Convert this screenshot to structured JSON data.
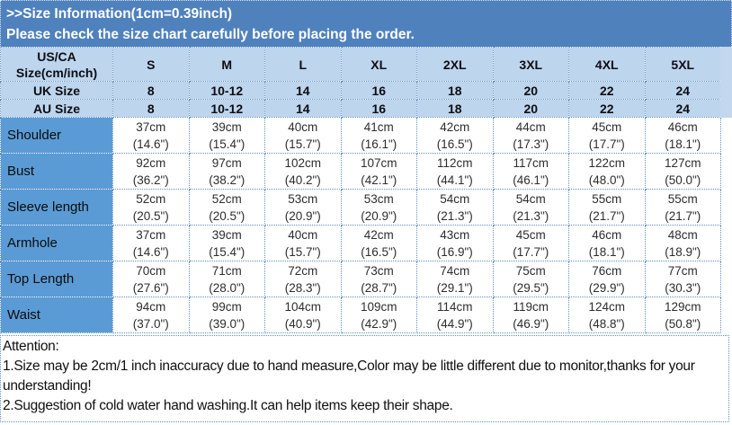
{
  "header": {
    "line1": ">>Size Information(1cm=0.39inch)",
    "line2": "Please check the size chart carefully before placing the order."
  },
  "colors": {
    "title_bar_bg": "#4f81bd",
    "header_cell_bg": "#bdd5ed",
    "row_label_bg": "#5b9bd5",
    "grid_dotted": "#6090c8",
    "title_text": "#ffffff",
    "cell_text": "#2d2d2d"
  },
  "table": {
    "corner_line1": "US/CA",
    "corner_line2": "Size(cm/inch)",
    "sizes": [
      "S",
      "M",
      "L",
      "XL",
      "2XL",
      "3XL",
      "4XL",
      "5XL"
    ],
    "uk": {
      "label": "UK Size",
      "values": [
        "8",
        "10-12",
        "14",
        "16",
        "18",
        "20",
        "22",
        "24"
      ]
    },
    "au": {
      "label": "AU Size",
      "values": [
        "8",
        "10-12",
        "14",
        "16",
        "18",
        "20",
        "22",
        "24"
      ]
    },
    "rows": [
      {
        "label": "Shoulder",
        "cm": [
          "37cm",
          "39cm",
          "40cm",
          "41cm",
          "42cm",
          "44cm",
          "45cm",
          "46cm"
        ],
        "inch": [
          "(14.6\")",
          "(15.4\")",
          "(15.7\")",
          "(16.1\")",
          "(16.5\")",
          "(17.3\")",
          "(17.7\")",
          "(18.1\")"
        ]
      },
      {
        "label": "Bust",
        "cm": [
          "92cm",
          "97cm",
          "102cm",
          "107cm",
          "112cm",
          "117cm",
          "122cm",
          "127cm"
        ],
        "inch": [
          "(36.2\")",
          "(38.2\")",
          "(40.2\")",
          "(42.1\")",
          "(44.1\")",
          "(46.1\")",
          "(48.0\")",
          "(50.0\")"
        ]
      },
      {
        "label": "Sleeve length",
        "cm": [
          "52cm",
          "52cm",
          "53cm",
          "53cm",
          "54cm",
          "54cm",
          "55cm",
          "55cm"
        ],
        "inch": [
          "(20.5\")",
          "(20.5\")",
          "(20.9\")",
          "(20.9\")",
          "(21.3\")",
          "(21.3\")",
          "(21.7\")",
          "(21.7\")"
        ]
      },
      {
        "label": "Armhole",
        "cm": [
          "37cm",
          "39cm",
          "40cm",
          "42cm",
          "43cm",
          "45cm",
          "46cm",
          "48cm"
        ],
        "inch": [
          "(14.6\")",
          "(15.4\")",
          "(15.7\")",
          "(16.5\")",
          "(16.9\")",
          "(17.7\")",
          "(18.1\")",
          "(18.9\")"
        ]
      },
      {
        "label": "Top Length",
        "cm": [
          "70cm",
          "71cm",
          "72cm",
          "73cm",
          "74cm",
          "75cm",
          "76cm",
          "77cm"
        ],
        "inch": [
          "(27.6\")",
          "(28.0\")",
          "(28.3\")",
          "(28.7\")",
          "(29.1\")",
          "(29.5\")",
          "(29.9\")",
          "(30.3\")"
        ]
      },
      {
        "label": "Waist",
        "cm": [
          "94cm",
          "99cm",
          "104cm",
          "109cm",
          "114cm",
          "119cm",
          "124cm",
          "129cm"
        ],
        "inch": [
          "(37.0\")",
          "(39.0\")",
          "(40.9\")",
          "(42.9\")",
          "(44.9\")",
          "(46.9\")",
          "(48.8\")",
          "(50.8\")"
        ]
      }
    ]
  },
  "attention": {
    "title": "Attention:",
    "note1": "1.Size may be 2cm/1 inch inaccuracy due to hand measure,Color may be little different due to monitor,thanks for your understanding!",
    "note2": "2.Suggestion of cold water hand washing.It can help items keep their shape."
  }
}
